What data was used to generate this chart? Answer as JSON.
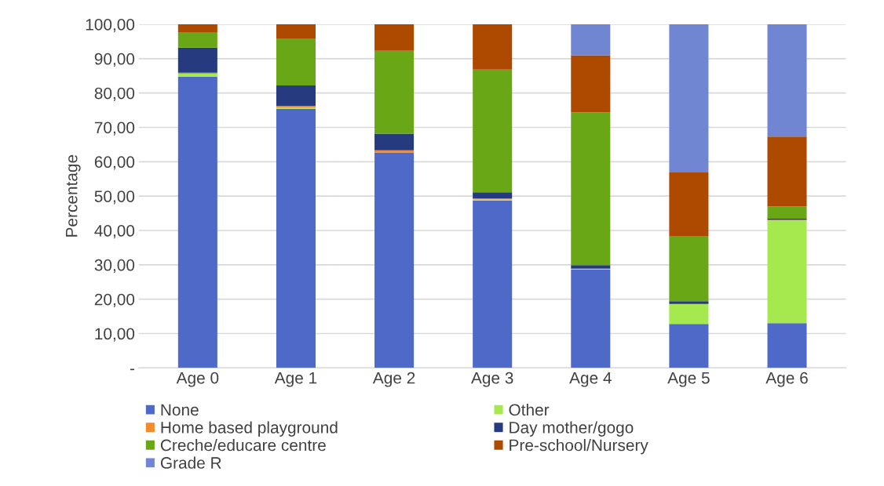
{
  "chart_data": {
    "type": "bar",
    "stacked": true,
    "ylabel": "Percentage",
    "categories": [
      "Age 0",
      "Age 1",
      "Age 2",
      "Age 3",
      "Age 4",
      "Age 5",
      "Age 6"
    ],
    "series": [
      {
        "name": "None",
        "color": "#4f69c9",
        "values": [
          84.8,
          75.4,
          62.7,
          48.7,
          28.6,
          12.8,
          13.0
        ]
      },
      {
        "name": "Other",
        "color": "#a6e94f",
        "values": [
          0.8,
          0.4,
          0.0,
          0.3,
          0.3,
          5.8,
          29.9
        ]
      },
      {
        "name": "Home based playground",
        "color": "#f38b2c",
        "values": [
          0.3,
          0.5,
          0.6,
          0.3,
          0.0,
          0.0,
          0.2
        ]
      },
      {
        "name": "Day mother/gogo",
        "color": "#263a7f",
        "values": [
          7.3,
          5.9,
          4.9,
          1.8,
          1.0,
          0.8,
          0.3
        ]
      },
      {
        "name": "Creche/educare centre",
        "color": "#69a716",
        "values": [
          4.5,
          13.7,
          24.1,
          35.7,
          44.5,
          19.0,
          3.6
        ]
      },
      {
        "name": "Pre-school/Nursery",
        "color": "#ae4900",
        "values": [
          2.3,
          4.1,
          7.7,
          13.2,
          16.6,
          18.5,
          20.3
        ]
      },
      {
        "name": "Grade R",
        "color": "#7186d3",
        "values": [
          0.0,
          0.0,
          0.0,
          0.0,
          9.0,
          43.1,
          32.7
        ]
      }
    ],
    "ylim": [
      0,
      100
    ],
    "yticks": [
      {
        "value": 0,
        "label": "-"
      },
      {
        "value": 10,
        "label": "10,00"
      },
      {
        "value": 20,
        "label": "20,00"
      },
      {
        "value": 30,
        "label": "30,00"
      },
      {
        "value": 40,
        "label": "40,00"
      },
      {
        "value": 50,
        "label": "50,00"
      },
      {
        "value": 60,
        "label": "60,00"
      },
      {
        "value": 70,
        "label": "70,00"
      },
      {
        "value": 80,
        "label": "80,00"
      },
      {
        "value": 90,
        "label": "90,00"
      },
      {
        "value": 100,
        "label": "100,00"
      }
    ],
    "grid": "y",
    "legend": "bottom"
  }
}
